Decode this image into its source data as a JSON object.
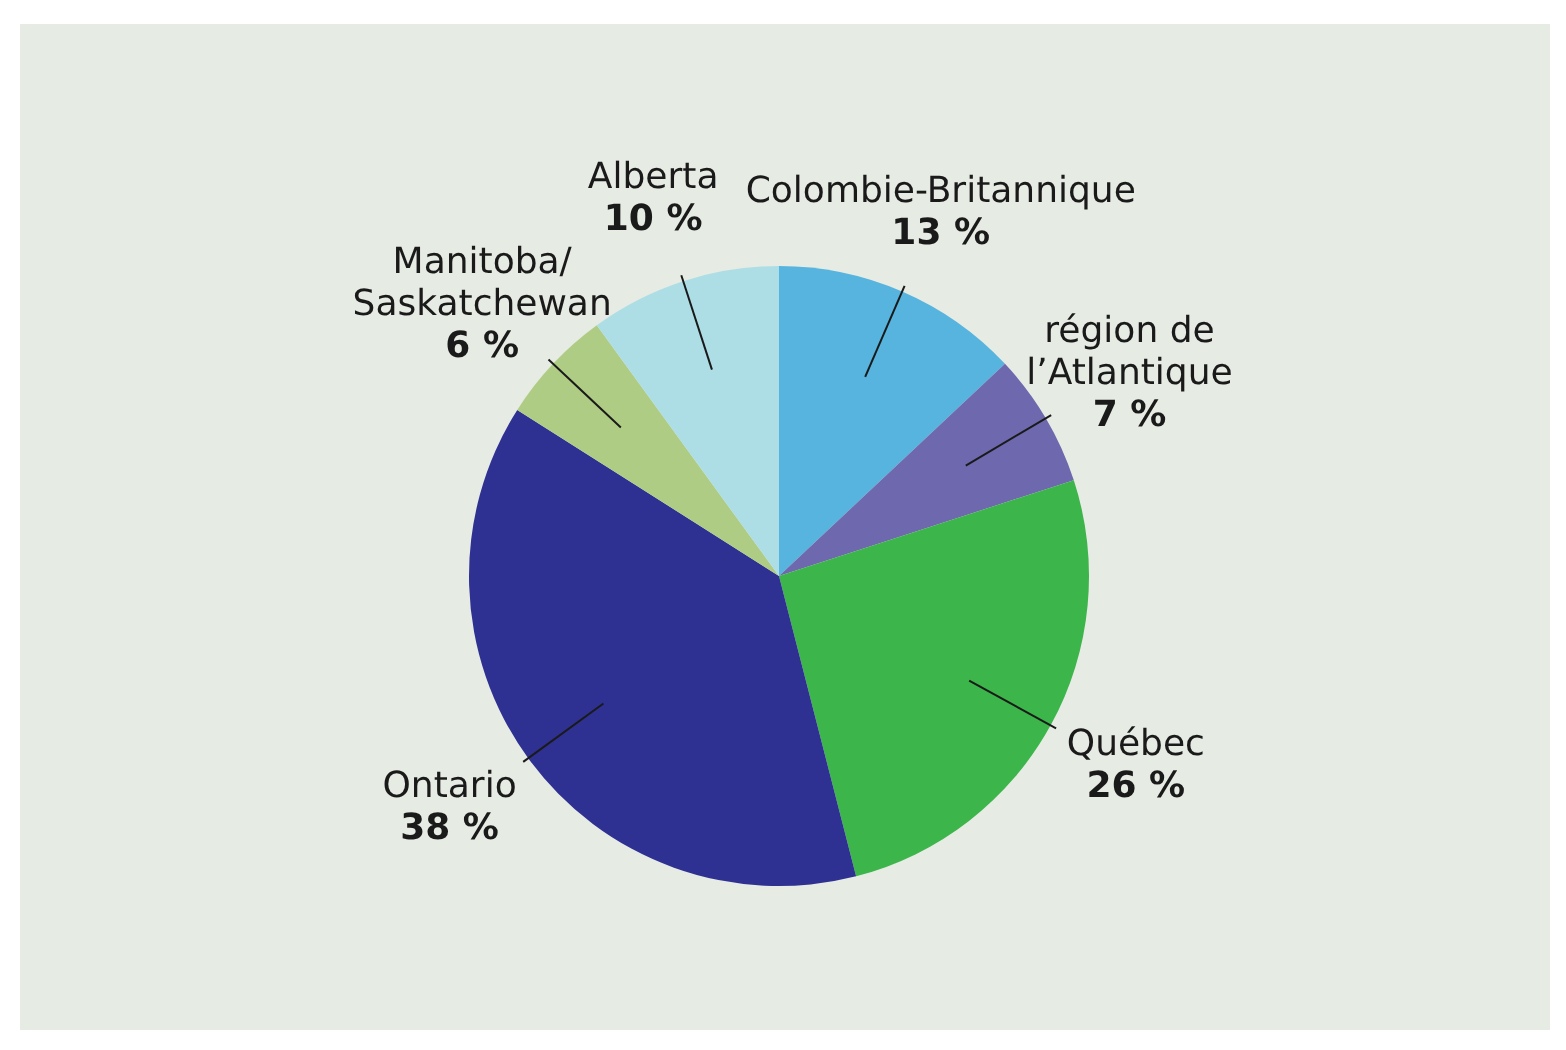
{
  "chart_data": {
    "type": "pie",
    "categories": [
      "Colombie-Britannique",
      "région de\nl’Atlantique",
      "Québec",
      "Ontario",
      "Manitoba/\nSaskatchewan",
      "Alberta"
    ],
    "values": [
      13,
      7,
      26,
      38,
      6,
      10
    ],
    "value_labels": [
      "13 %",
      "7 %",
      "26 %",
      "38 %",
      "6 %",
      "10 %"
    ],
    "colors": [
      "#56b4de",
      "#6e68ae",
      "#3cb54a",
      "#2e3192",
      "#afcc84",
      "#addee6"
    ],
    "legend": false
  }
}
